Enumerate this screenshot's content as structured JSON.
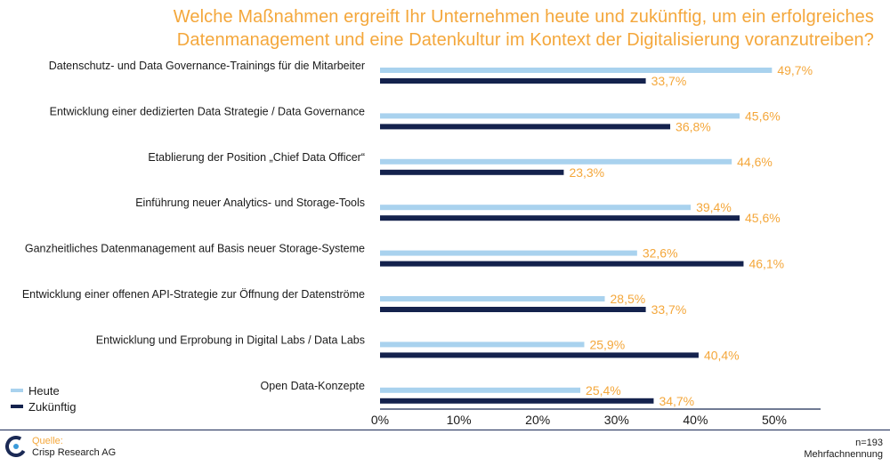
{
  "colors": {
    "accent": "#f4a73b",
    "heute": "#a9d2ee",
    "zukuenftig": "#14224d",
    "text": "#1a1a1a",
    "axis": "#1b2a55"
  },
  "title_lines": [
    "Welche Maßnahmen ergreift Ihr Unternehmen heute und zukünftig, um ein erfolgreiches",
    "Datenmanagement und eine Datenkultur im Kontext der Digitalisierung voranzutreiben?"
  ],
  "legend": {
    "heute": "Heute",
    "zukuenftig": "Zukünftig"
  },
  "footer": {
    "source_label": "Quelle:",
    "source_name": "Crisp Research AG",
    "n": "n=193",
    "note": "Mehrfachnennung"
  },
  "logo_icon": "crisp-logo-icon",
  "chart_data": {
    "type": "bar",
    "orientation": "horizontal",
    "categories": [
      "Datenschutz- und Data Governance-Trainings für die Mitarbeiter",
      "Entwicklung einer dedizierten Data Strategie / Data Governance",
      "Etablierung der Position „Chief Data Officer“",
      "Einführung neuer Analytics- und Storage-Tools",
      "Ganzheitliches Datenmanagement auf Basis neuer Storage-Systeme",
      "Entwicklung einer offenen API-Strategie zur Öffnung der Datenströme",
      "Entwicklung und Erprobung in Digital Labs / Data Labs",
      "Open Data-Konzepte"
    ],
    "series": [
      {
        "name": "Heute",
        "values": [
          49.7,
          45.6,
          44.6,
          39.4,
          32.6,
          28.5,
          25.9,
          25.4
        ],
        "labels": [
          "49,7%",
          "45,6%",
          "44,6%",
          "39,4%",
          "32,6%",
          "28,5%",
          "25,9%",
          "25,4%"
        ]
      },
      {
        "name": "Zukünftig",
        "values": [
          33.7,
          36.8,
          23.3,
          45.6,
          46.1,
          33.7,
          40.4,
          34.7
        ],
        "labels": [
          "33,7%",
          "36,8%",
          "23,3%",
          "45,6%",
          "46,1%",
          "33,7%",
          "40,4%",
          "34,7%"
        ]
      }
    ],
    "xlim": [
      0,
      55
    ],
    "xticks": [
      0,
      10,
      20,
      30,
      40,
      50
    ],
    "xtick_labels": [
      "0%",
      "10%",
      "20%",
      "30%",
      "40%",
      "50%"
    ],
    "legend_position": "bottom-left",
    "grid": false
  }
}
